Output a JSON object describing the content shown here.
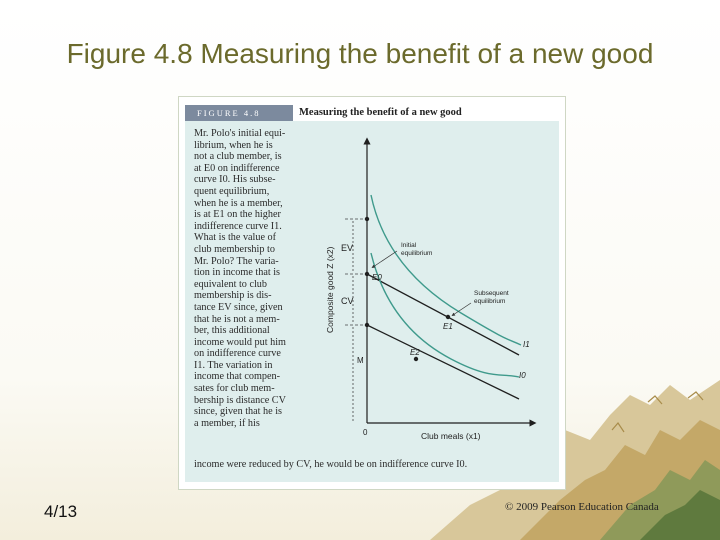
{
  "slide": {
    "title": "Figure 4.8 Measuring the benefit of a new good",
    "number": "4/13",
    "copyright": "© 2009 Pearson Education Canada"
  },
  "figure": {
    "label": "FIGURE 4.8",
    "heading": "Measuring the benefit of a new good",
    "caption_lines": [
      "Mr. Polo's initial equi-",
      "librium, when he is",
      "not a club member, is",
      "at E0 on indifference",
      "curve I0. His subse-",
      "quent equilibrium,",
      "when he is a member,",
      "is at E1 on the higher",
      "indifference curve I1.",
      "What is the value of",
      "club membership to",
      "Mr. Polo? The varia-",
      "tion in income that is",
      "equivalent to club",
      "membership is dis-",
      "tance EV since, given",
      "that he is not a mem-",
      "ber, this additional",
      "income would put him",
      "on indifference curve",
      "I1. The variation in",
      "income that compen-",
      "sates for club mem-",
      "bership is distance CV",
      "since, given that he is",
      "a member, if his"
    ],
    "caption_tail": "income were reduced by CV, he would be on indifference curve I0.",
    "diagram": {
      "y_axis_label": "Composite good Z (x2)",
      "x_axis_label": "Club meals (x1)",
      "origin_label": "0",
      "ev_label": "EV",
      "cv_label": "CV",
      "m_label": "M",
      "e0_label": "E0",
      "e1_label": "E1",
      "e2_label": "E2",
      "i0_label": "I0",
      "i1_label": "I1",
      "initial_eq_label": [
        "Initial",
        "equilibrium"
      ],
      "subsequent_eq_label": [
        "Subsequent",
        "equilibrium"
      ],
      "colors": {
        "indifference_curve": "#3f9a8c",
        "budget_line": "#1f1f1f",
        "axis": "#1f1f1f",
        "dashed_guide": "#444444"
      }
    }
  },
  "theme": {
    "title_color": "#6b6a2c",
    "panel_color": "#dfeeed",
    "label_color": "#7c8a9e"
  }
}
